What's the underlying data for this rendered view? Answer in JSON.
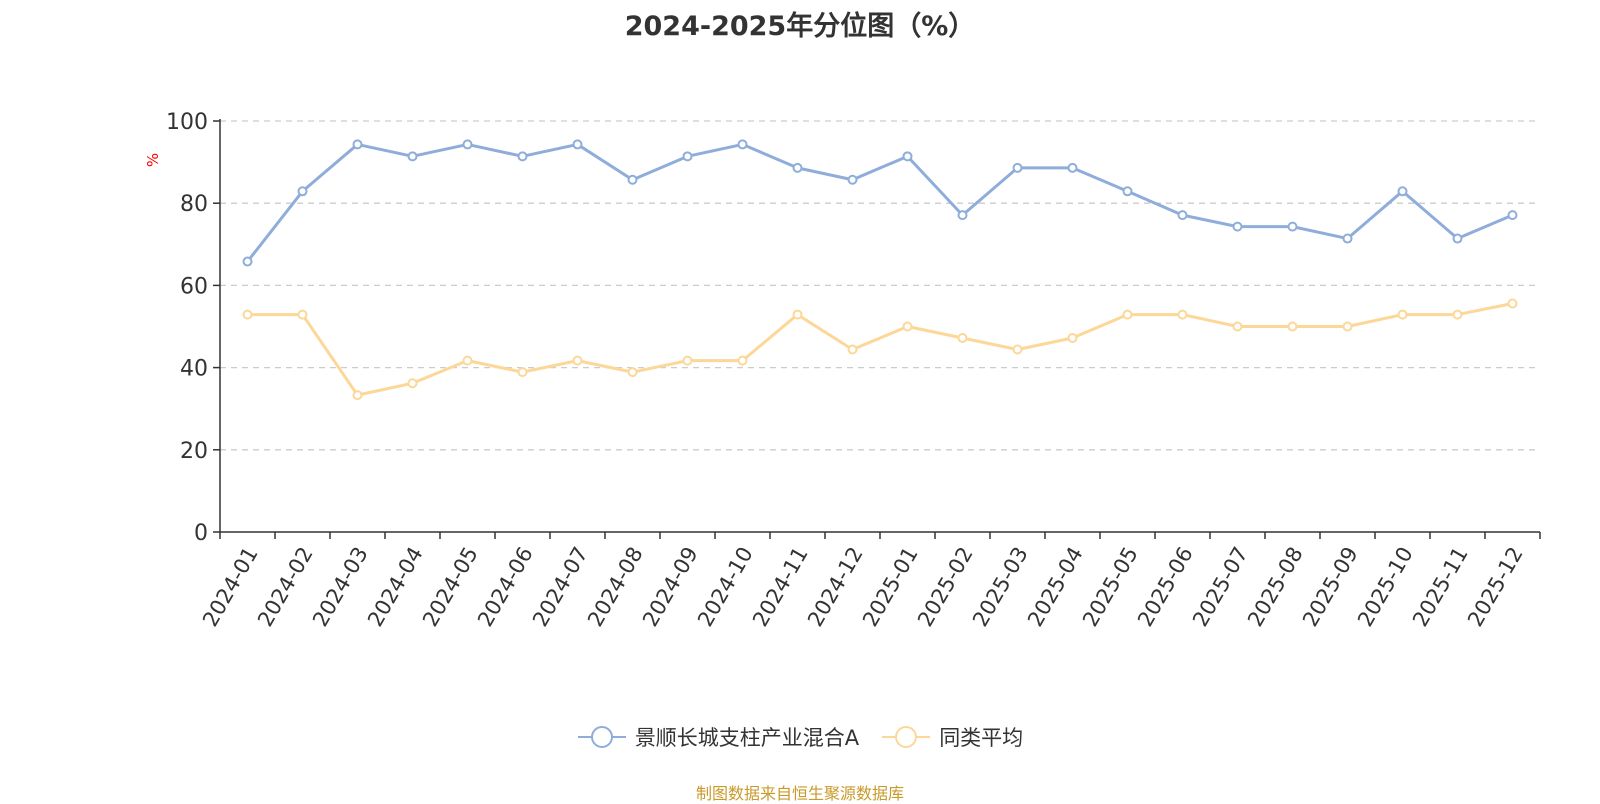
{
  "chart_data": {
    "type": "line",
    "title": "2024-2025年分位图（%）",
    "ylabel": "%",
    "ylim": [
      0,
      100
    ],
    "yticks": [
      0,
      20,
      40,
      60,
      80,
      100
    ],
    "grid": true,
    "legend_position": "bottom-center",
    "categories": [
      "2024-01",
      "2024-02",
      "2024-03",
      "2024-04",
      "2024-05",
      "2024-06",
      "2024-07",
      "2024-08",
      "2024-09",
      "2024-10",
      "2024-11",
      "2024-12",
      "2025-01",
      "2025-02",
      "2025-03",
      "2025-04",
      "2025-05",
      "2025-06",
      "2025-07",
      "2025-08",
      "2025-09",
      "2025-10",
      "2025-11",
      "2025-12"
    ],
    "series": [
      {
        "name": "景顺长城支柱产业混合A",
        "color": "#8eaddb",
        "values": [
          65.8,
          82.9,
          94.3,
          91.4,
          94.3,
          91.4,
          94.3,
          85.7,
          91.4,
          94.3,
          88.6,
          85.7,
          91.4,
          77.1,
          88.6,
          88.6,
          82.9,
          77.1,
          74.3,
          74.3,
          71.4,
          82.9,
          71.4,
          77.1
        ]
      },
      {
        "name": "同类平均",
        "color": "#fcd798",
        "values": [
          52.9,
          52.9,
          33.3,
          36.2,
          41.7,
          38.9,
          41.7,
          38.9,
          41.7,
          41.7,
          52.9,
          44.4,
          50.0,
          47.2,
          44.4,
          47.2,
          52.9,
          52.9,
          50.0,
          50.0,
          50.0,
          52.9,
          52.9,
          55.6
        ]
      }
    ]
  },
  "footer": {
    "source_note": "制图数据来自恒生聚源数据库"
  }
}
